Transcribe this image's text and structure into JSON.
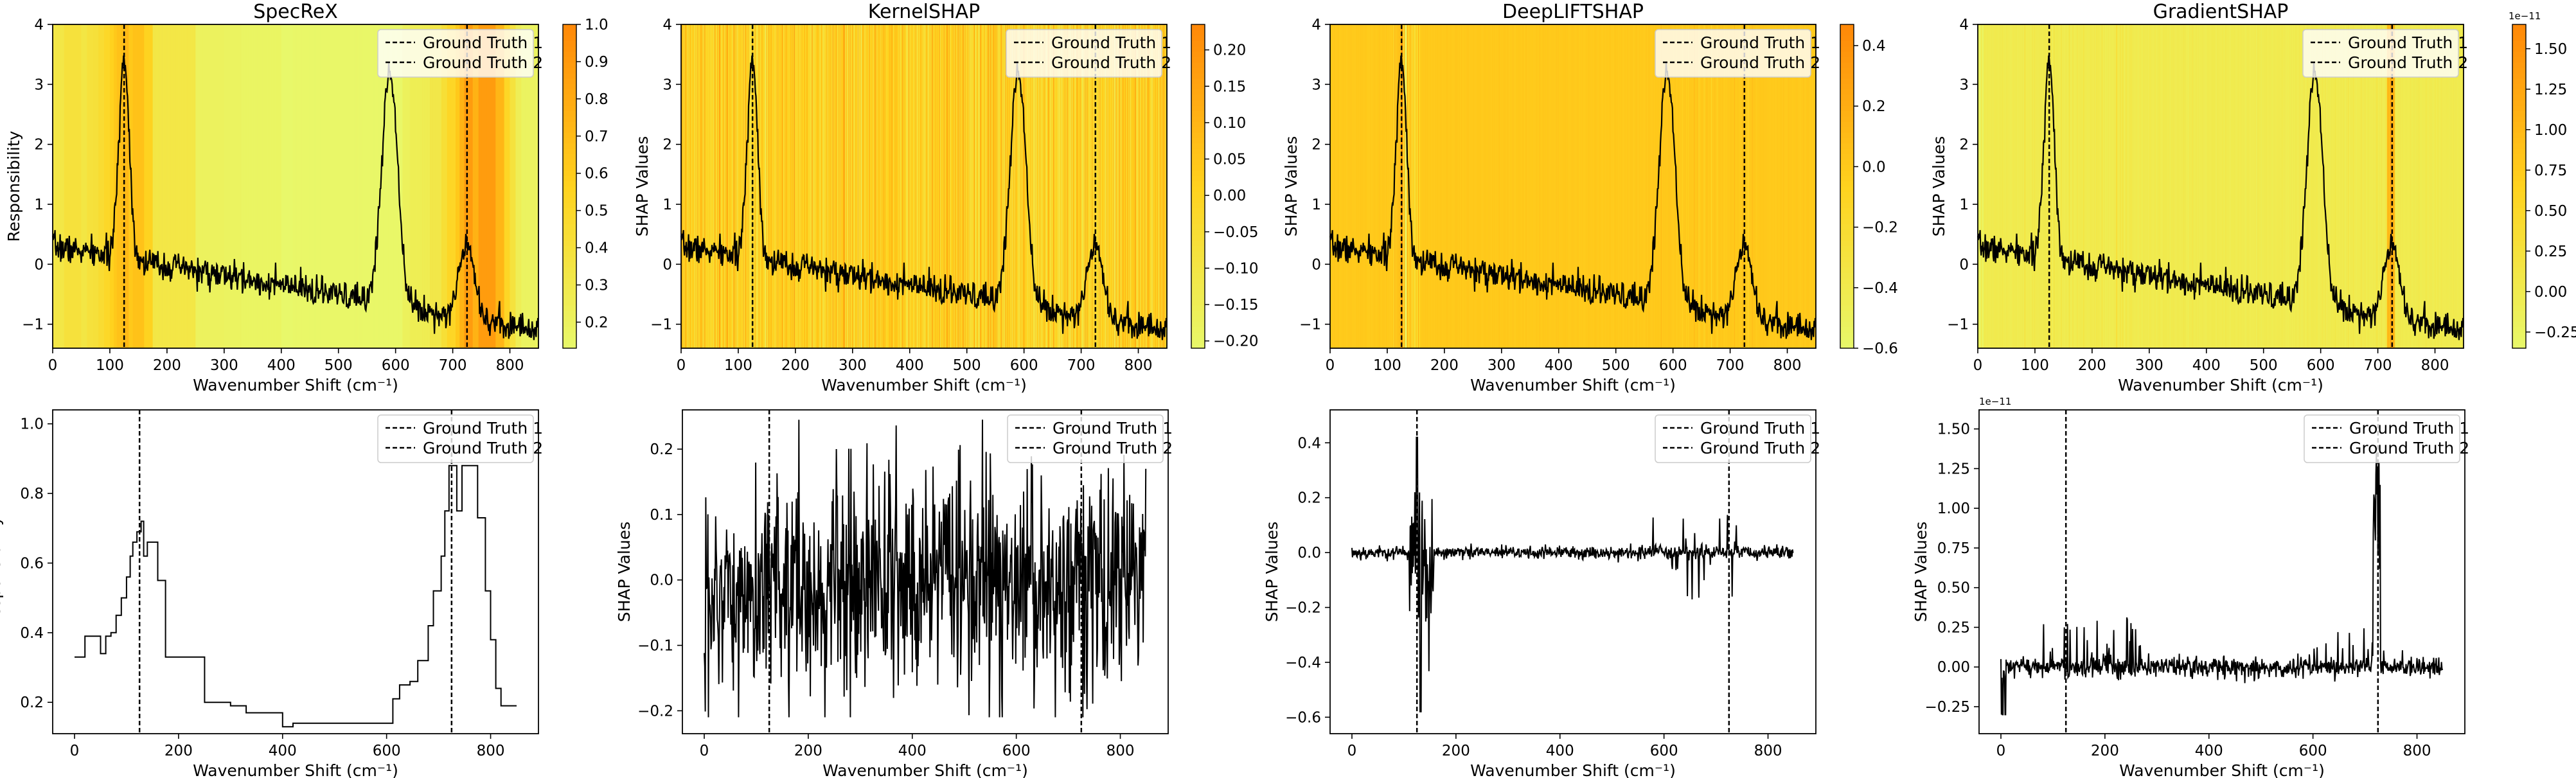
{
  "chart_data": [
    {
      "id": "specrex-heat",
      "type": "heatmap-line",
      "title": "SpecReX",
      "xlabel": "Wavenumber Shift (cm⁻¹)",
      "ylabel": "Responsibility",
      "xlim": [
        0,
        850
      ],
      "ylim": [
        -1.4,
        4.0
      ],
      "xticks": [
        0,
        100,
        200,
        300,
        400,
        500,
        600,
        700,
        800
      ],
      "yticks": [
        -1,
        0,
        1,
        2,
        3,
        4
      ],
      "colorbar": {
        "min": 0.13,
        "max": 1.0,
        "ticks": [
          "0.2",
          "0.3",
          "0.4",
          "0.5",
          "0.6",
          "0.7",
          "0.8",
          "0.9",
          "1.0"
        ],
        "tick_values": [
          0.2,
          0.3,
          0.4,
          0.5,
          0.6,
          0.7,
          0.8,
          0.9,
          1.0
        ],
        "exponent": ""
      },
      "heat_source": "specrex",
      "legend": [
        "Ground Truth 1",
        "Ground Truth 2"
      ],
      "vlines": [
        125,
        725
      ]
    },
    {
      "id": "kernelshap-heat",
      "type": "heatmap-line",
      "title": "KernelSHAP",
      "xlabel": "Wavenumber Shift (cm⁻¹)",
      "ylabel": "SHAP Values",
      "xlim": [
        0,
        850
      ],
      "ylim": [
        -1.4,
        4.0
      ],
      "xticks": [
        0,
        100,
        200,
        300,
        400,
        500,
        600,
        700,
        800
      ],
      "yticks": [
        -1,
        0,
        1,
        2,
        3,
        4
      ],
      "colorbar": {
        "min": -0.21,
        "max": 0.235,
        "ticks": [
          "−0.20",
          "−0.15",
          "−0.10",
          "−0.05",
          "0.00",
          "0.05",
          "0.10",
          "0.15",
          "0.20"
        ],
        "tick_values": [
          -0.2,
          -0.15,
          -0.1,
          -0.05,
          0.0,
          0.05,
          0.1,
          0.15,
          0.2
        ],
        "exponent": ""
      },
      "heat_source": "kernelshap",
      "legend": [
        "Ground Truth 1",
        "Ground Truth 2"
      ],
      "vlines": [
        125,
        725
      ]
    },
    {
      "id": "deepliftshap-heat",
      "type": "heatmap-line",
      "title": "DeepLIFTSHAP",
      "xlabel": "Wavenumber Shift (cm⁻¹)",
      "ylabel": "SHAP Values",
      "xlim": [
        0,
        850
      ],
      "ylim": [
        -1.4,
        4.0
      ],
      "xticks": [
        0,
        100,
        200,
        300,
        400,
        500,
        600,
        700,
        800
      ],
      "yticks": [
        -1,
        0,
        1,
        2,
        3,
        4
      ],
      "colorbar": {
        "min": -0.6,
        "max": 0.47,
        "ticks": [
          "−0.6",
          "−0.4",
          "−0.2",
          "0.0",
          "0.2",
          "0.4"
        ],
        "tick_values": [
          -0.6,
          -0.4,
          -0.2,
          0.0,
          0.2,
          0.4
        ],
        "exponent": ""
      },
      "heat_source": "deeplift",
      "legend": [
        "Ground Truth 1",
        "Ground Truth 2"
      ],
      "vlines": [
        125,
        725
      ]
    },
    {
      "id": "gradientshap-heat",
      "type": "heatmap-line",
      "title": "GradientSHAP",
      "xlabel": "Wavenumber Shift (cm⁻¹)",
      "ylabel": "SHAP Values",
      "xlim": [
        0,
        850
      ],
      "ylim": [
        -1.4,
        4.0
      ],
      "xticks": [
        0,
        100,
        200,
        300,
        400,
        500,
        600,
        700,
        800
      ],
      "yticks": [
        -1,
        0,
        1,
        2,
        3,
        4
      ],
      "colorbar": {
        "min": -0.35,
        "max": 1.65,
        "ticks": [
          "−0.25",
          "0.00",
          "0.25",
          "0.50",
          "0.75",
          "1.00",
          "1.25",
          "1.50"
        ],
        "tick_values": [
          -0.25,
          0.0,
          0.25,
          0.5,
          0.75,
          1.0,
          1.25,
          1.5
        ],
        "exponent": "1e−11"
      },
      "heat_source": "gradient",
      "legend": [
        "Ground Truth 1",
        "Ground Truth 2"
      ],
      "vlines": [
        125,
        725
      ]
    },
    {
      "id": "specrex-line",
      "type": "line",
      "title": "",
      "xlabel": "Wavenumber Shift (cm⁻¹)",
      "ylabel": "Responsibility",
      "xlim": [
        -42,
        892
      ],
      "ylim": [
        0.11,
        1.04
      ],
      "xticks": [
        0,
        200,
        400,
        600,
        800
      ],
      "xtick_labels": [
        "0",
        "200",
        "400",
        "600",
        "800"
      ],
      "yticks": [
        0.2,
        0.4,
        0.6,
        0.8,
        1.0
      ],
      "ytick_labels": [
        "0.2",
        "0.4",
        "0.6",
        "0.8",
        "1.0"
      ],
      "exponent": "",
      "series_source": "specrex",
      "legend": [
        "Ground Truth 1",
        "Ground Truth 2"
      ],
      "vlines": [
        125,
        725
      ]
    },
    {
      "id": "kernelshap-line",
      "type": "line",
      "title": "",
      "xlabel": "Wavenumber Shift (cm⁻¹)",
      "ylabel": "SHAP Values",
      "xlim": [
        -42,
        892
      ],
      "ylim": [
        -0.235,
        0.26
      ],
      "xticks": [
        0,
        200,
        400,
        600,
        800
      ],
      "xtick_labels": [
        "0",
        "200",
        "400",
        "600",
        "800"
      ],
      "yticks": [
        -0.2,
        -0.1,
        0.0,
        0.1,
        0.2
      ],
      "ytick_labels": [
        "−0.2",
        "−0.1",
        "0.0",
        "0.1",
        "0.2"
      ],
      "exponent": "",
      "series_source": "kernelshap",
      "legend": [
        "Ground Truth 1",
        "Ground Truth 2"
      ],
      "vlines": [
        125,
        725
      ]
    },
    {
      "id": "deepliftshap-line",
      "type": "line",
      "title": "",
      "xlabel": "Wavenumber Shift (cm⁻¹)",
      "ylabel": "SHAP Values",
      "xlim": [
        -42,
        892
      ],
      "ylim": [
        -0.66,
        0.52
      ],
      "xticks": [
        0,
        200,
        400,
        600,
        800
      ],
      "xtick_labels": [
        "0",
        "200",
        "400",
        "600",
        "800"
      ],
      "yticks": [
        -0.6,
        -0.4,
        -0.2,
        0.0,
        0.2,
        0.4
      ],
      "ytick_labels": [
        "−0.6",
        "−0.4",
        "−0.2",
        "0.0",
        "0.2",
        "0.4"
      ],
      "exponent": "",
      "series_source": "deeplift",
      "legend": [
        "Ground Truth 1",
        "Ground Truth 2"
      ],
      "vlines": [
        125,
        725
      ]
    },
    {
      "id": "gradientshap-line",
      "type": "line",
      "title": "",
      "xlabel": "Wavenumber Shift (cm⁻¹)",
      "ylabel": "SHAP Values",
      "xlim": [
        -42,
        892
      ],
      "ylim": [
        -0.42,
        1.62
      ],
      "xticks": [
        0,
        200,
        400,
        600,
        800
      ],
      "xtick_labels": [
        "0",
        "200",
        "400",
        "600",
        "800"
      ],
      "yticks": [
        -0.25,
        0.0,
        0.25,
        0.5,
        0.75,
        1.0,
        1.25,
        1.5
      ],
      "ytick_labels": [
        "−0.25",
        "0.00",
        "0.25",
        "0.50",
        "0.75",
        "1.00",
        "1.25",
        "1.50"
      ],
      "exponent": "1e−11",
      "series_source": "gradient",
      "legend": [
        "Ground Truth 1",
        "Ground Truth 2"
      ],
      "vlines": [
        125,
        725
      ]
    }
  ],
  "spectrum": {
    "description_free": true,
    "baseline_start": 0.3,
    "baseline_end": -1.1,
    "noise": 0.12,
    "peaks": [
      [
        125,
        3.35,
        9
      ],
      [
        590,
        3.9,
        14
      ],
      [
        725,
        1.3,
        13
      ]
    ]
  },
  "specrex_steps": [
    [
      0,
      0.33
    ],
    [
      20,
      0.39
    ],
    [
      50,
      0.34
    ],
    [
      60,
      0.39
    ],
    [
      70,
      0.4
    ],
    [
      80,
      0.45
    ],
    [
      90,
      0.5
    ],
    [
      100,
      0.56
    ],
    [
      107,
      0.62
    ],
    [
      112,
      0.66
    ],
    [
      120,
      0.69
    ],
    [
      128,
      0.72
    ],
    [
      133,
      0.62
    ],
    [
      140,
      0.66
    ],
    [
      150,
      0.66
    ],
    [
      160,
      0.55
    ],
    [
      175,
      0.33
    ],
    [
      190,
      0.33
    ],
    [
      200,
      0.33
    ],
    [
      230,
      0.33
    ],
    [
      250,
      0.2
    ],
    [
      300,
      0.19
    ],
    [
      330,
      0.17
    ],
    [
      380,
      0.17
    ],
    [
      400,
      0.13
    ],
    [
      420,
      0.14
    ],
    [
      470,
      0.14
    ],
    [
      520,
      0.14
    ],
    [
      550,
      0.14
    ],
    [
      600,
      0.14
    ],
    [
      612,
      0.21
    ],
    [
      625,
      0.25
    ],
    [
      645,
      0.26
    ],
    [
      660,
      0.32
    ],
    [
      680,
      0.42
    ],
    [
      690,
      0.52
    ],
    [
      705,
      0.62
    ],
    [
      712,
      0.75
    ],
    [
      720,
      0.88
    ],
    [
      735,
      0.75
    ],
    [
      745,
      0.88
    ],
    [
      760,
      0.88
    ],
    [
      775,
      0.73
    ],
    [
      790,
      0.52
    ],
    [
      800,
      0.38
    ],
    [
      810,
      0.24
    ],
    [
      820,
      0.19
    ],
    [
      840,
      0.19
    ]
  ],
  "colors": {
    "light": "#e8f86a",
    "mid": "#ffd21e",
    "dark": "#ff8808",
    "line": "#000000"
  }
}
